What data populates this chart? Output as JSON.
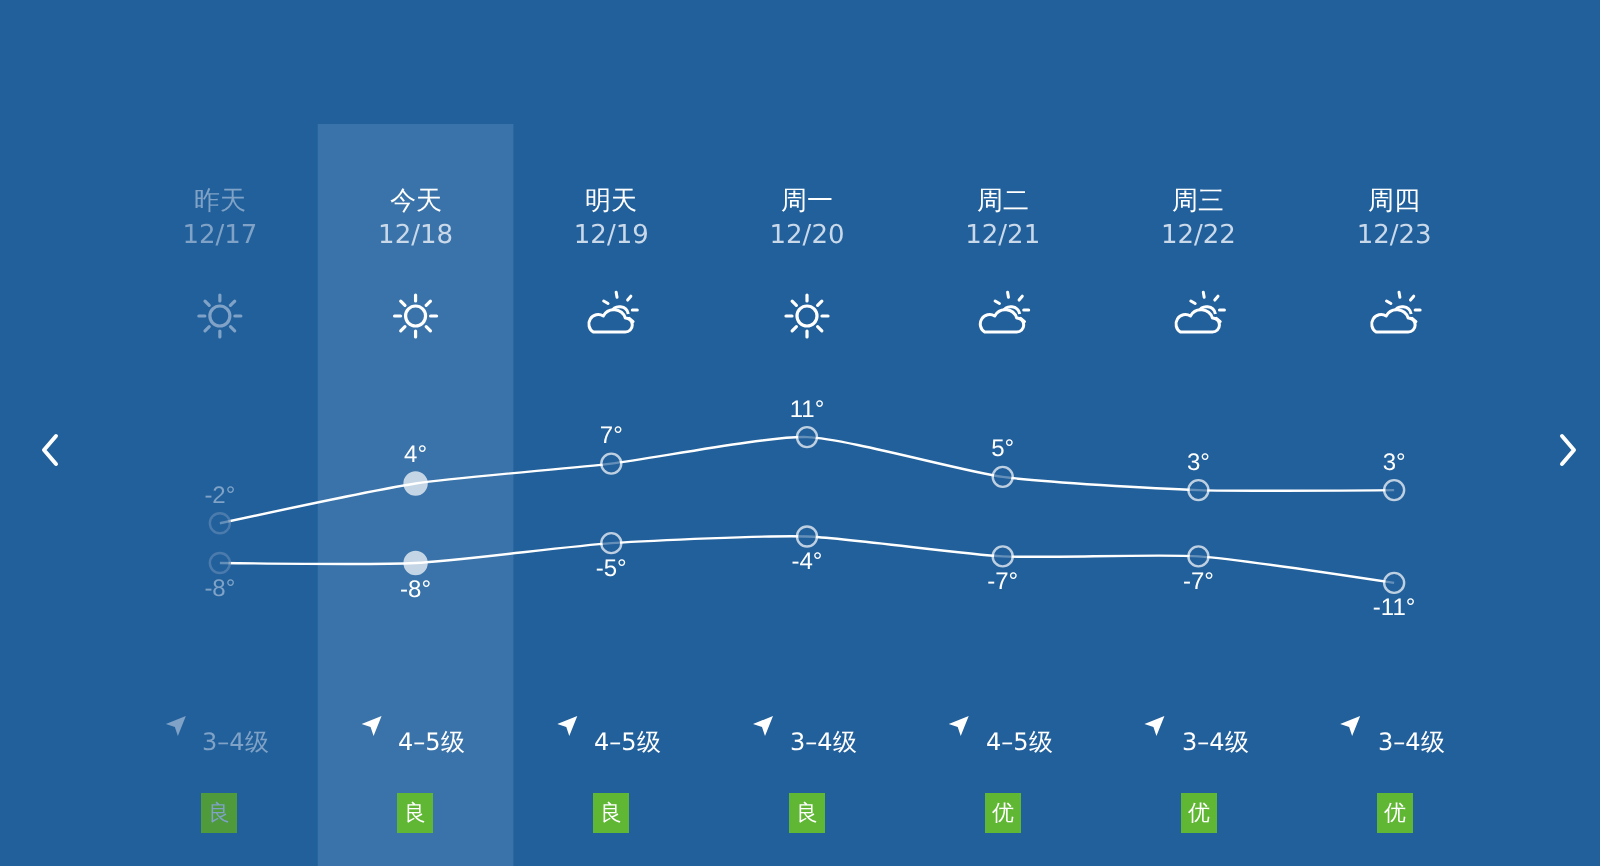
{
  "chart_data": {
    "type": "line",
    "categories": [
      "昨天\n12/17",
      "今天\n12/18",
      "明天\n12/19",
      "周一\n12/20",
      "周二\n12/21",
      "周三\n12/22",
      "周四\n12/23"
    ],
    "series": [
      {
        "color": "#ffffff",
        "values": [
          -2,
          4,
          7,
          11,
          5,
          3,
          3
        ],
        "value_labels": [
          "-2°",
          "4°",
          "7°",
          "11°",
          "5°",
          "3°",
          "3°"
        ]
      },
      {
        "color": "#ffffff",
        "values": [
          -8,
          -8,
          -5,
          -4,
          -7,
          -7,
          -11
        ],
        "value_labels": [
          "-8°",
          "-8°",
          "-5°",
          "-4°",
          "-7°",
          "-7°",
          "-11°"
        ]
      }
    ],
    "bands": [
      {
        "axis": "x",
        "from": "今天\n12/18",
        "to": "今天\n12/18",
        "color": "#3a73a9"
      }
    ],
    "annotations": [
      "3–4级",
      "4–5级",
      "4–5级",
      "3–4级",
      "4–5级",
      "3–4级",
      "3–4级",
      "良",
      "良",
      "良",
      "良",
      "优",
      "优",
      "优"
    ],
    "marker": "circle",
    "line_style": "solid"
  }
}
